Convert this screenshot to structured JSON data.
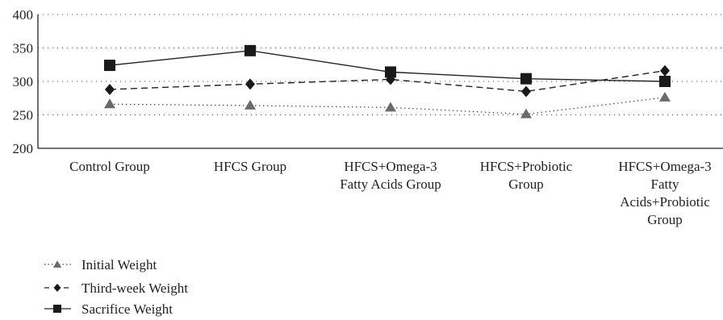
{
  "chart_data": {
    "type": "line",
    "title": "",
    "xlabel": "",
    "ylabel": "",
    "ylim": [
      200,
      400
    ],
    "yticks": [
      200,
      250,
      300,
      350,
      400
    ],
    "grid": true,
    "legend_position": "bottom-left",
    "categories": [
      [
        "Control Group"
      ],
      [
        "HFCS Group"
      ],
      [
        "HFCS+Omega-3",
        "Fatty Acids Group"
      ],
      [
        "HFCS+Probiotic",
        "Group"
      ],
      [
        "HFCS+Omega-3",
        "Fatty",
        "Acids+Probiotic",
        "Group"
      ]
    ],
    "series": [
      {
        "name": "Initial Weight",
        "values": [
          266,
          264,
          261,
          251,
          276
        ],
        "marker": "triangle",
        "dash": "dotted",
        "color": "#6b6b6b"
      },
      {
        "name": "Third-week Weight",
        "values": [
          288,
          296,
          303,
          285,
          316
        ],
        "marker": "diamond",
        "dash": "dashed",
        "color": "#1a1a1a"
      },
      {
        "name": "Sacrifice Weight",
        "values": [
          324,
          346,
          314,
          304,
          300
        ],
        "marker": "square",
        "dash": "solid",
        "color": "#1a1a1a"
      }
    ]
  }
}
